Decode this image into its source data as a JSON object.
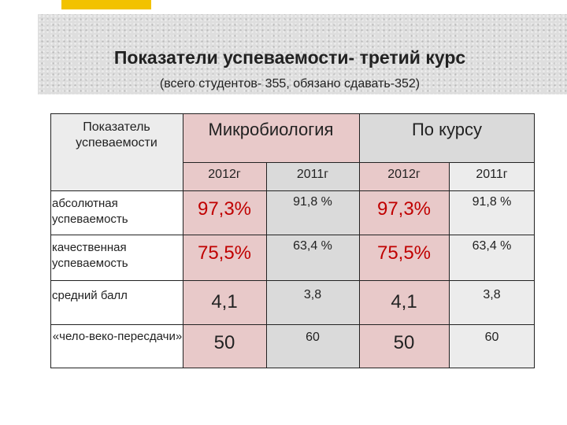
{
  "title": "Показатели успеваемости- третий курс",
  "subtitle": "(всего студентов- 355, обязано сдавать-352)",
  "table": {
    "corner_label": "Показатель успеваемости",
    "groups": [
      "Микробиология",
      "По курсу"
    ],
    "years": [
      "2012г",
      "2011г",
      "2012г",
      "2011г"
    ],
    "rows": [
      {
        "label": "абсолютная успеваемость",
        "values": [
          "97,3%",
          "91,8 %",
          "97,3%",
          "91,8 %"
        ]
      },
      {
        "label": "качественная успеваемость",
        "values": [
          "75,5%",
          "63,4 %",
          "75,5%",
          "63,4 %"
        ]
      },
      {
        "label": "средний балл",
        "values": [
          "4,1",
          "3,8",
          "4,1",
          "3,8"
        ]
      },
      {
        "label": "«чело-веко-пересдачи»",
        "values": [
          "50",
          "60",
          "50",
          "60"
        ]
      }
    ]
  },
  "colors": {
    "accent": "#f2c200",
    "highlight_value": "#c00000",
    "pink_cell": "#e8c9c9"
  }
}
